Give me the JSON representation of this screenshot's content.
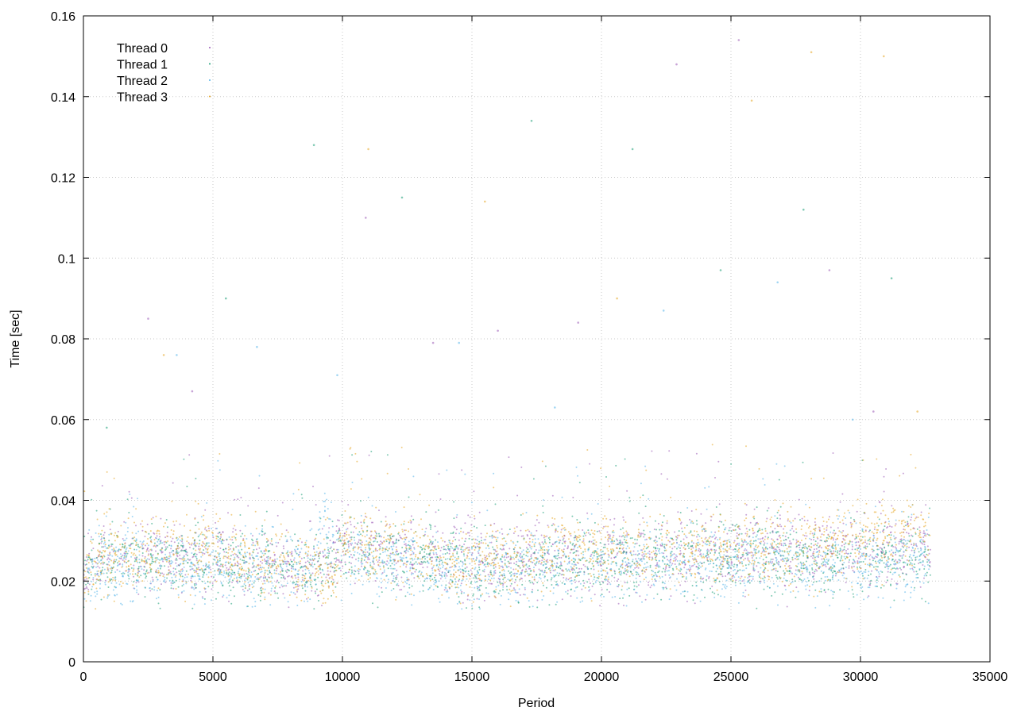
{
  "chart_data": {
    "type": "scatter",
    "title": "",
    "xlabel": "Period",
    "ylabel": "Time [sec]",
    "xlim": [
      0,
      35000
    ],
    "ylim": [
      0,
      0.16
    ],
    "xticks": [
      "0",
      "5000",
      "10000",
      "15000",
      "20000",
      "25000",
      "30000",
      "35000"
    ],
    "yticks": [
      "0",
      "0.02",
      "0.04",
      "0.06",
      "0.08",
      "0.1",
      "0.12",
      "0.14",
      "0.16"
    ],
    "grid": true,
    "legend_position": "top-left",
    "x_max_period": 32700,
    "series": [
      {
        "name": "Thread 0",
        "color": "#9b59b6",
        "baseline": [
          [
            0,
            0.022
          ],
          [
            500,
            0.026
          ],
          [
            5000,
            0.026
          ],
          [
            9000,
            0.023
          ],
          [
            10000,
            0.029
          ],
          [
            15000,
            0.025
          ],
          [
            20000,
            0.026
          ],
          [
            25000,
            0.027
          ],
          [
            30000,
            0.028
          ],
          [
            32700,
            0.029
          ]
        ],
        "outliers": [
          [
            2500,
            0.085
          ],
          [
            4200,
            0.067
          ],
          [
            10900,
            0.11
          ],
          [
            13500,
            0.079
          ],
          [
            16000,
            0.082
          ],
          [
            19100,
            0.084
          ],
          [
            22900,
            0.148
          ],
          [
            25300,
            0.154
          ],
          [
            28800,
            0.097
          ],
          [
            30500,
            0.062
          ]
        ]
      },
      {
        "name": "Thread 1",
        "color": "#1a9e77",
        "baseline": [
          [
            0,
            0.021
          ],
          [
            500,
            0.025
          ],
          [
            5000,
            0.025
          ],
          [
            9000,
            0.022
          ],
          [
            10000,
            0.028
          ],
          [
            15000,
            0.024
          ],
          [
            20000,
            0.025
          ],
          [
            25000,
            0.026
          ],
          [
            30000,
            0.025
          ],
          [
            32700,
            0.026
          ]
        ],
        "outliers": [
          [
            900,
            0.058
          ],
          [
            5500,
            0.09
          ],
          [
            8900,
            0.128
          ],
          [
            12300,
            0.115
          ],
          [
            17300,
            0.134
          ],
          [
            21200,
            0.127
          ],
          [
            24600,
            0.097
          ],
          [
            27800,
            0.112
          ],
          [
            31200,
            0.095
          ]
        ]
      },
      {
        "name": "Thread 2",
        "color": "#56b4e9",
        "baseline": [
          [
            0,
            0.021
          ],
          [
            500,
            0.024
          ],
          [
            5000,
            0.024
          ],
          [
            8800,
            0.022
          ],
          [
            9300,
            0.036
          ],
          [
            10000,
            0.026
          ],
          [
            15000,
            0.023
          ],
          [
            20000,
            0.024
          ],
          [
            25000,
            0.025
          ],
          [
            30000,
            0.024
          ],
          [
            32700,
            0.025
          ]
        ],
        "outliers": [
          [
            3600,
            0.076
          ],
          [
            6700,
            0.078
          ],
          [
            9800,
            0.071
          ],
          [
            14500,
            0.079
          ],
          [
            18200,
            0.063
          ],
          [
            22400,
            0.087
          ],
          [
            26800,
            0.094
          ],
          [
            29700,
            0.06
          ]
        ]
      },
      {
        "name": "Thread 3",
        "color": "#e5a623",
        "baseline": [
          [
            0,
            0.02
          ],
          [
            500,
            0.026
          ],
          [
            5000,
            0.027
          ],
          [
            9000,
            0.023
          ],
          [
            9800,
            0.021
          ],
          [
            10000,
            0.03
          ],
          [
            15000,
            0.025
          ],
          [
            20000,
            0.027
          ],
          [
            25000,
            0.028
          ],
          [
            30000,
            0.03
          ],
          [
            32700,
            0.032
          ]
        ],
        "outliers": [
          [
            3100,
            0.076
          ],
          [
            11000,
            0.127
          ],
          [
            15500,
            0.114
          ],
          [
            20600,
            0.09
          ],
          [
            25800,
            0.139
          ],
          [
            28100,
            0.151
          ],
          [
            30900,
            0.15
          ],
          [
            32200,
            0.062
          ]
        ]
      }
    ]
  }
}
